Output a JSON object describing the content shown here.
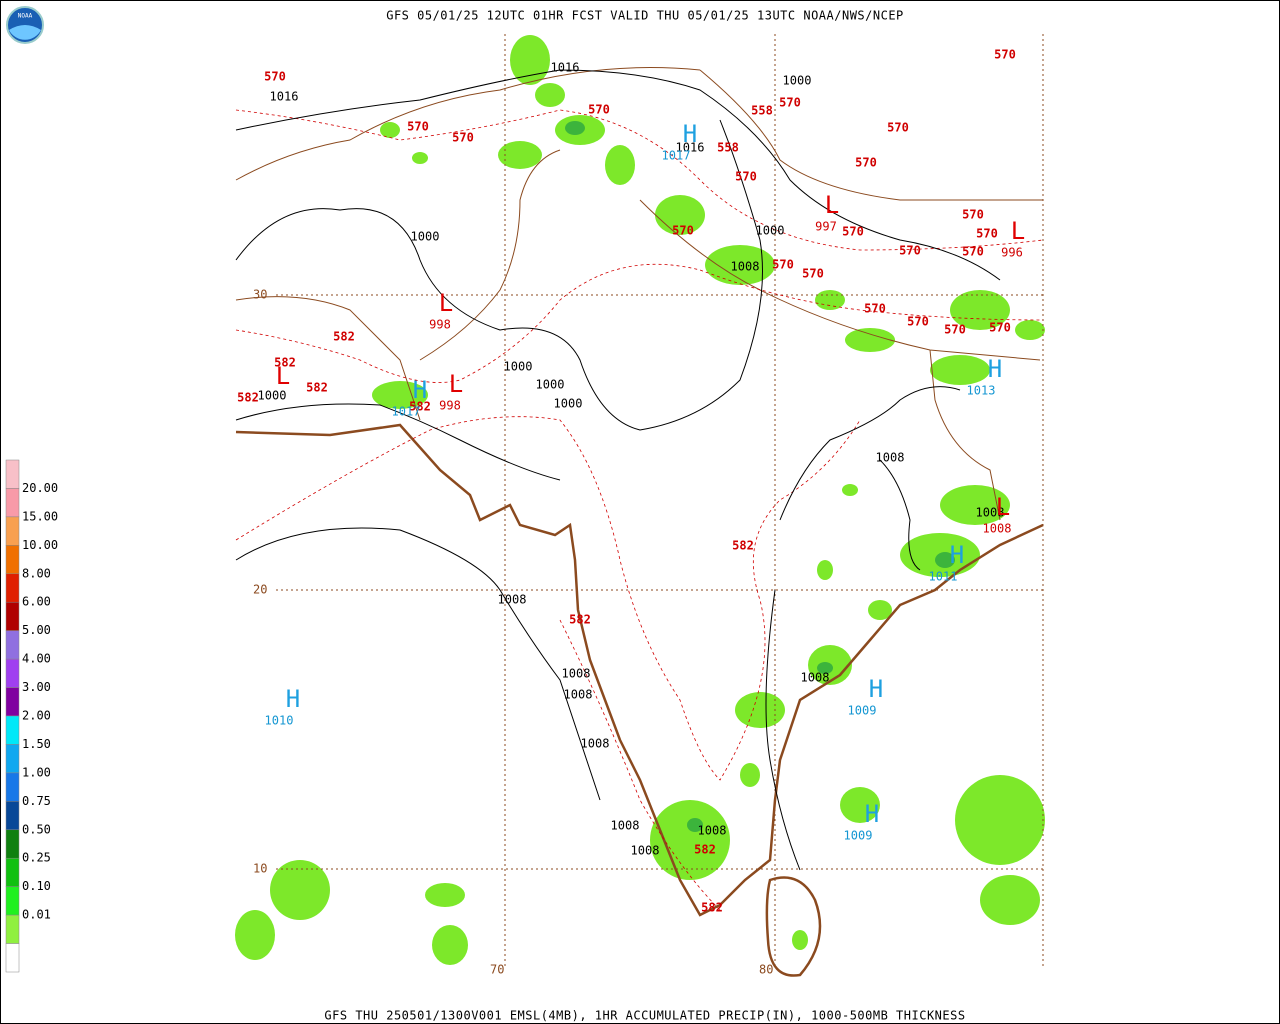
{
  "header": {
    "title": "GFS 05/01/25 12UTC 01HR FCST VALID THU 05/01/25 13UTC NOAA/NWS/NCEP",
    "logo": "NOAA"
  },
  "footer": {
    "caption": "GFS THU 250501/1300V001 EMSL(4MB), 1HR ACCUMULATED PRECIP(IN), 1000-500MB THICKNESS"
  },
  "legend": {
    "labels": [
      "20.00",
      "15.00",
      "10.00",
      "8.00",
      "6.00",
      "5.00",
      "4.00",
      "3.00",
      "2.00",
      "1.50",
      "1.00",
      "0.75",
      "0.50",
      "0.25",
      "0.10",
      "0.01"
    ]
  },
  "map": {
    "grid_labels": [
      "30",
      "20",
      "10",
      "70",
      "80"
    ],
    "pressure_labels": [
      "1016",
      "1016",
      "1000",
      "1016",
      "1000",
      "1000",
      "1008",
      "1000",
      "1000",
      "1000",
      "1000",
      "1008",
      "1008",
      "1008",
      "1008",
      "1008",
      "1008",
      "1008",
      "1008",
      "1008",
      "1008"
    ],
    "thickness_labels": [
      "570",
      "570",
      "570",
      "570",
      "570",
      "570",
      "558",
      "570",
      "558",
      "570",
      "570",
      "570",
      "570",
      "570",
      "570",
      "570",
      "570",
      "570",
      "570",
      "570",
      "570",
      "570",
      "570",
      "582",
      "582",
      "582",
      "582",
      "582",
      "582",
      "582",
      "582",
      "582"
    ],
    "highs": [
      {
        "symbol": "H",
        "value": "1017"
      },
      {
        "symbol": "H",
        "value": "1017"
      },
      {
        "symbol": "H",
        "value": "1010"
      },
      {
        "symbol": "H",
        "value": "1009"
      },
      {
        "symbol": "H",
        "value": "1009"
      },
      {
        "symbol": "H",
        "value": "1011"
      },
      {
        "symbol": "H",
        "value": "1013"
      }
    ],
    "lows": [
      {
        "symbol": "L",
        "value": "997"
      },
      {
        "symbol": "L",
        "value": "996"
      },
      {
        "symbol": "L",
        "value": "998"
      },
      {
        "symbol": "L",
        "value": "998"
      },
      {
        "symbol": "L",
        "value": "1008"
      },
      {
        "symbol": "L"
      }
    ]
  }
}
